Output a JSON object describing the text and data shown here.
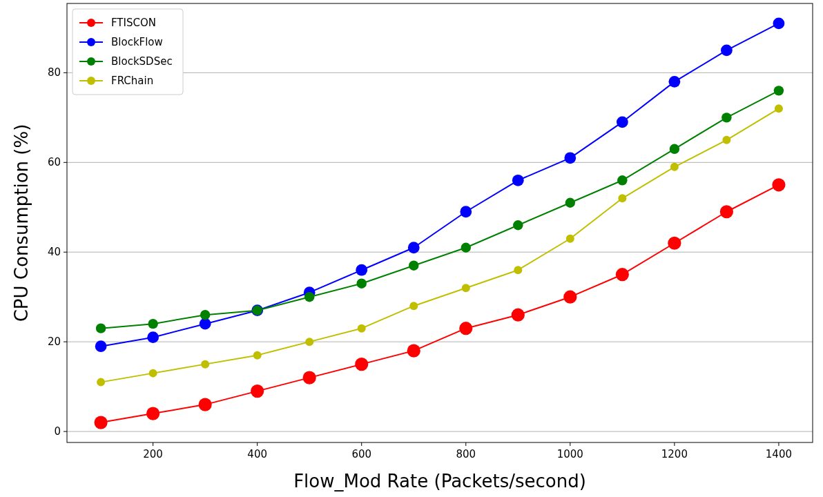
{
  "chart_data": {
    "type": "line",
    "xlabel": "Flow_Mod Rate (Packets/second)",
    "ylabel": "CPU Consumption (%)",
    "x": [
      100,
      200,
      300,
      400,
      500,
      600,
      700,
      800,
      900,
      1000,
      1100,
      1200,
      1300,
      1400
    ],
    "series": [
      {
        "name": "FTISCON",
        "color": "#ff0000",
        "values": [
          2,
          4,
          6,
          9,
          12,
          15,
          18,
          23,
          26,
          30,
          35,
          42,
          49,
          55
        ]
      },
      {
        "name": "BlockFlow",
        "color": "#0000ff",
        "values": [
          19,
          21,
          24,
          27,
          31,
          36,
          41,
          49,
          56,
          61,
          69,
          78,
          85,
          91
        ]
      },
      {
        "name": "BlockSDSec",
        "color": "#008000",
        "values": [
          23,
          24,
          26,
          27,
          30,
          33,
          37,
          41,
          46,
          51,
          56,
          63,
          70,
          76
        ]
      },
      {
        "name": "FRChain",
        "color": "#bfbf00",
        "values": [
          11,
          13,
          15,
          17,
          20,
          23,
          28,
          32,
          36,
          43,
          52,
          59,
          65,
          72
        ]
      }
    ],
    "xlim": [
      35,
      1465
    ],
    "ylim": [
      -2.45,
      95.45
    ],
    "xticks": [
      200,
      400,
      600,
      800,
      1000,
      1200,
      1400
    ],
    "yticks": [
      0,
      20,
      40,
      60,
      80
    ],
    "grid": "y",
    "legend": "top left",
    "marker": "circle",
    "line_style": "solid"
  }
}
